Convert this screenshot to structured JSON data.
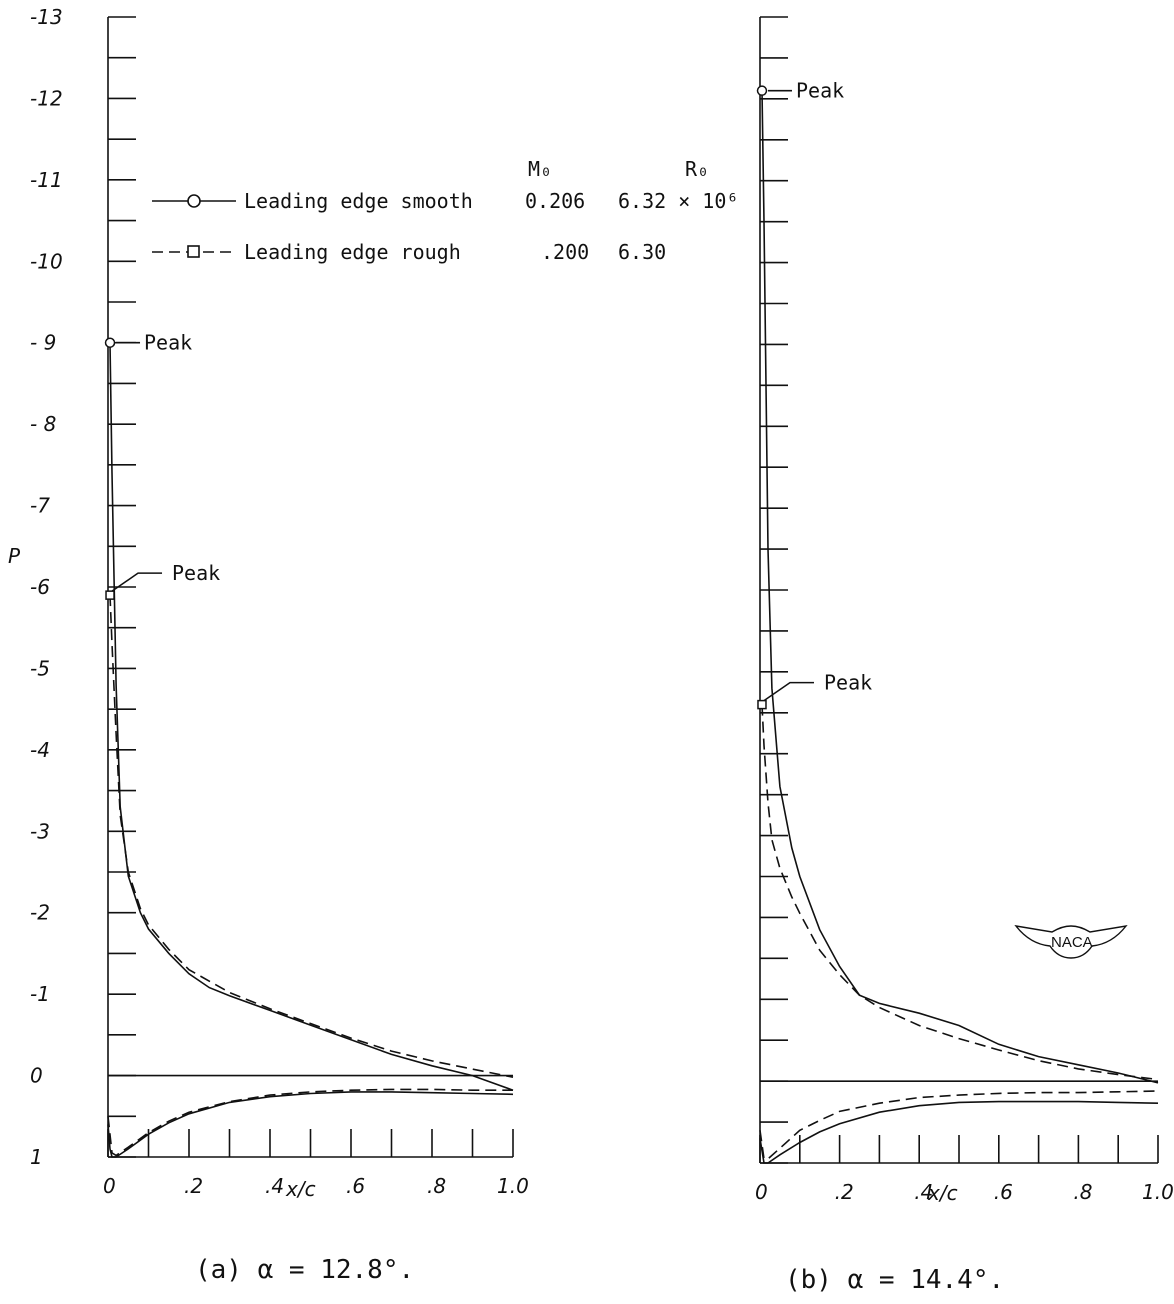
{
  "chart_data": [
    {
      "type": "line",
      "caption": "(a)  α = 12.8°.",
      "ylabel": "P",
      "xlabel": "x/c",
      "xlim": [
        0,
        1.0
      ],
      "ylim": [
        1,
        -13
      ],
      "x_tick_labels": [
        "0",
        ".2",
        ".4",
        ".6",
        ".8",
        "1.0"
      ],
      "y_tick_labels": [
        "-13",
        "-12",
        "-11",
        "-10",
        "- 9",
        "- 8",
        "-7",
        "-6",
        "-5",
        "-4",
        "-3",
        "-2",
        "-1",
        "0",
        "1"
      ],
      "annotations": [
        {
          "text": "Peak",
          "series": 0,
          "x": 0.005,
          "y": -9.0
        },
        {
          "text": "Peak",
          "series": 1,
          "x": 0.005,
          "y": -5.9
        }
      ],
      "series": [
        {
          "name": "Leading edge smooth",
          "surface": "upper",
          "style": "solid",
          "points": [
            [
              0.005,
              -9.0
            ],
            [
              0.01,
              -7.4
            ],
            [
              0.02,
              -4.8
            ],
            [
              0.03,
              -3.3
            ],
            [
              0.05,
              -2.45
            ],
            [
              0.08,
              -2.0
            ],
            [
              0.1,
              -1.8
            ],
            [
              0.15,
              -1.5
            ],
            [
              0.2,
              -1.25
            ],
            [
              0.25,
              -1.08
            ],
            [
              0.3,
              -0.98
            ],
            [
              0.4,
              -0.8
            ],
            [
              0.5,
              -0.62
            ],
            [
              0.6,
              -0.44
            ],
            [
              0.7,
              -0.26
            ],
            [
              0.8,
              -0.12
            ],
            [
              0.9,
              0.0
            ],
            [
              1.0,
              0.18
            ]
          ]
        },
        {
          "name": "Leading edge smooth",
          "surface": "lower",
          "style": "solid",
          "points": [
            [
              0.0,
              0.6
            ],
            [
              0.005,
              0.9
            ],
            [
              0.01,
              1.0
            ],
            [
              0.02,
              1.0
            ],
            [
              0.05,
              0.9
            ],
            [
              0.1,
              0.72
            ],
            [
              0.15,
              0.58
            ],
            [
              0.2,
              0.47
            ],
            [
              0.3,
              0.33
            ],
            [
              0.4,
              0.26
            ],
            [
              0.5,
              0.22
            ],
            [
              0.6,
              0.2
            ],
            [
              0.7,
              0.2
            ],
            [
              0.8,
              0.21
            ],
            [
              0.9,
              0.22
            ],
            [
              1.0,
              0.23
            ]
          ]
        },
        {
          "name": "Leading edge rough",
          "surface": "upper",
          "style": "dashed",
          "points": [
            [
              0.005,
              -5.9
            ],
            [
              0.01,
              -5.3
            ],
            [
              0.02,
              -4.2
            ],
            [
              0.03,
              -3.2
            ],
            [
              0.05,
              -2.5
            ],
            [
              0.08,
              -2.05
            ],
            [
              0.1,
              -1.85
            ],
            [
              0.15,
              -1.55
            ],
            [
              0.2,
              -1.3
            ],
            [
              0.3,
              -1.02
            ],
            [
              0.4,
              -0.82
            ],
            [
              0.5,
              -0.64
            ],
            [
              0.6,
              -0.46
            ],
            [
              0.7,
              -0.3
            ],
            [
              0.8,
              -0.18
            ],
            [
              0.9,
              -0.08
            ],
            [
              1.0,
              0.02
            ]
          ]
        },
        {
          "name": "Leading edge rough",
          "surface": "lower",
          "style": "dashed",
          "points": [
            [
              0.0,
              0.5
            ],
            [
              0.01,
              0.95
            ],
            [
              0.02,
              0.98
            ],
            [
              0.05,
              0.88
            ],
            [
              0.1,
              0.7
            ],
            [
              0.15,
              0.56
            ],
            [
              0.2,
              0.45
            ],
            [
              0.3,
              0.32
            ],
            [
              0.4,
              0.24
            ],
            [
              0.5,
              0.2
            ],
            [
              0.6,
              0.18
            ],
            [
              0.7,
              0.17
            ],
            [
              0.8,
              0.17
            ],
            [
              0.9,
              0.18
            ],
            [
              1.0,
              0.18
            ]
          ]
        }
      ],
      "zero_line": {
        "y": 0
      }
    },
    {
      "type": "line",
      "caption": "(b)  α = 14.4°.",
      "ylabel": "",
      "xlabel": "x/c",
      "xlim": [
        0,
        1.0
      ],
      "ylim": [
        1,
        -13
      ],
      "x_tick_labels": [
        "0",
        ".2",
        ".4",
        ".6",
        ".8",
        "1.0"
      ],
      "y_tick_labels": [],
      "annotations": [
        {
          "text": "Peak",
          "series": 0,
          "x": 0.005,
          "y": -12.1
        },
        {
          "text": "Peak",
          "series": 1,
          "x": 0.005,
          "y": -4.6
        }
      ],
      "series": [
        {
          "name": "Leading edge smooth",
          "surface": "upper",
          "style": "solid",
          "points": [
            [
              0.005,
              -12.1
            ],
            [
              0.01,
              -10.5
            ],
            [
              0.02,
              -6.5
            ],
            [
              0.03,
              -4.8
            ],
            [
              0.05,
              -3.6
            ],
            [
              0.08,
              -2.85
            ],
            [
              0.1,
              -2.5
            ],
            [
              0.15,
              -1.85
            ],
            [
              0.2,
              -1.4
            ],
            [
              0.25,
              -1.05
            ],
            [
              0.3,
              -0.95
            ],
            [
              0.4,
              -0.83
            ],
            [
              0.5,
              -0.68
            ],
            [
              0.6,
              -0.45
            ],
            [
              0.7,
              -0.3
            ],
            [
              0.8,
              -0.2
            ],
            [
              0.9,
              -0.1
            ],
            [
              1.0,
              0.02
            ]
          ]
        },
        {
          "name": "Leading edge smooth",
          "surface": "lower",
          "style": "solid",
          "points": [
            [
              0.0,
              0.7
            ],
            [
              0.01,
              1.0
            ],
            [
              0.02,
              1.0
            ],
            [
              0.05,
              0.9
            ],
            [
              0.1,
              0.75
            ],
            [
              0.15,
              0.62
            ],
            [
              0.2,
              0.52
            ],
            [
              0.3,
              0.38
            ],
            [
              0.4,
              0.3
            ],
            [
              0.5,
              0.26
            ],
            [
              0.6,
              0.25
            ],
            [
              0.7,
              0.25
            ],
            [
              0.8,
              0.25
            ],
            [
              0.9,
              0.26
            ],
            [
              1.0,
              0.27
            ]
          ]
        },
        {
          "name": "Leading edge rough",
          "surface": "upper",
          "style": "dashed",
          "points": [
            [
              0.005,
              -4.6
            ],
            [
              0.01,
              -4.1
            ],
            [
              0.02,
              -3.4
            ],
            [
              0.03,
              -2.95
            ],
            [
              0.05,
              -2.6
            ],
            [
              0.08,
              -2.25
            ],
            [
              0.1,
              -2.05
            ],
            [
              0.15,
              -1.6
            ],
            [
              0.2,
              -1.3
            ],
            [
              0.25,
              -1.05
            ],
            [
              0.3,
              -0.9
            ],
            [
              0.4,
              -0.68
            ],
            [
              0.5,
              -0.52
            ],
            [
              0.6,
              -0.38
            ],
            [
              0.7,
              -0.25
            ],
            [
              0.8,
              -0.15
            ],
            [
              0.9,
              -0.08
            ],
            [
              1.0,
              -0.02
            ]
          ]
        },
        {
          "name": "Leading edge rough",
          "surface": "lower",
          "style": "dashed",
          "points": [
            [
              0.0,
              0.6
            ],
            [
              0.01,
              0.95
            ],
            [
              0.02,
              0.95
            ],
            [
              0.05,
              0.82
            ],
            [
              0.1,
              0.6
            ],
            [
              0.15,
              0.48
            ],
            [
              0.2,
              0.37
            ],
            [
              0.3,
              0.27
            ],
            [
              0.4,
              0.2
            ],
            [
              0.5,
              0.17
            ],
            [
              0.6,
              0.15
            ],
            [
              0.7,
              0.14
            ],
            [
              0.8,
              0.14
            ],
            [
              0.9,
              0.13
            ],
            [
              1.0,
              0.12
            ]
          ]
        }
      ],
      "zero_line": {
        "y": 0
      }
    }
  ],
  "legend": {
    "header_mach": "M₀",
    "header_reynolds": "R₀",
    "rows": [
      {
        "label": "Leading edge smooth",
        "mach": "0.206",
        "reynolds": "6.32 × 10⁶",
        "marker": "circle",
        "style": "solid"
      },
      {
        "label": "Leading edge rough",
        "mach": ".200",
        "reynolds": "6.30",
        "marker": "square",
        "style": "dashed"
      }
    ]
  },
  "naca_logo": {
    "text": "NACA"
  }
}
